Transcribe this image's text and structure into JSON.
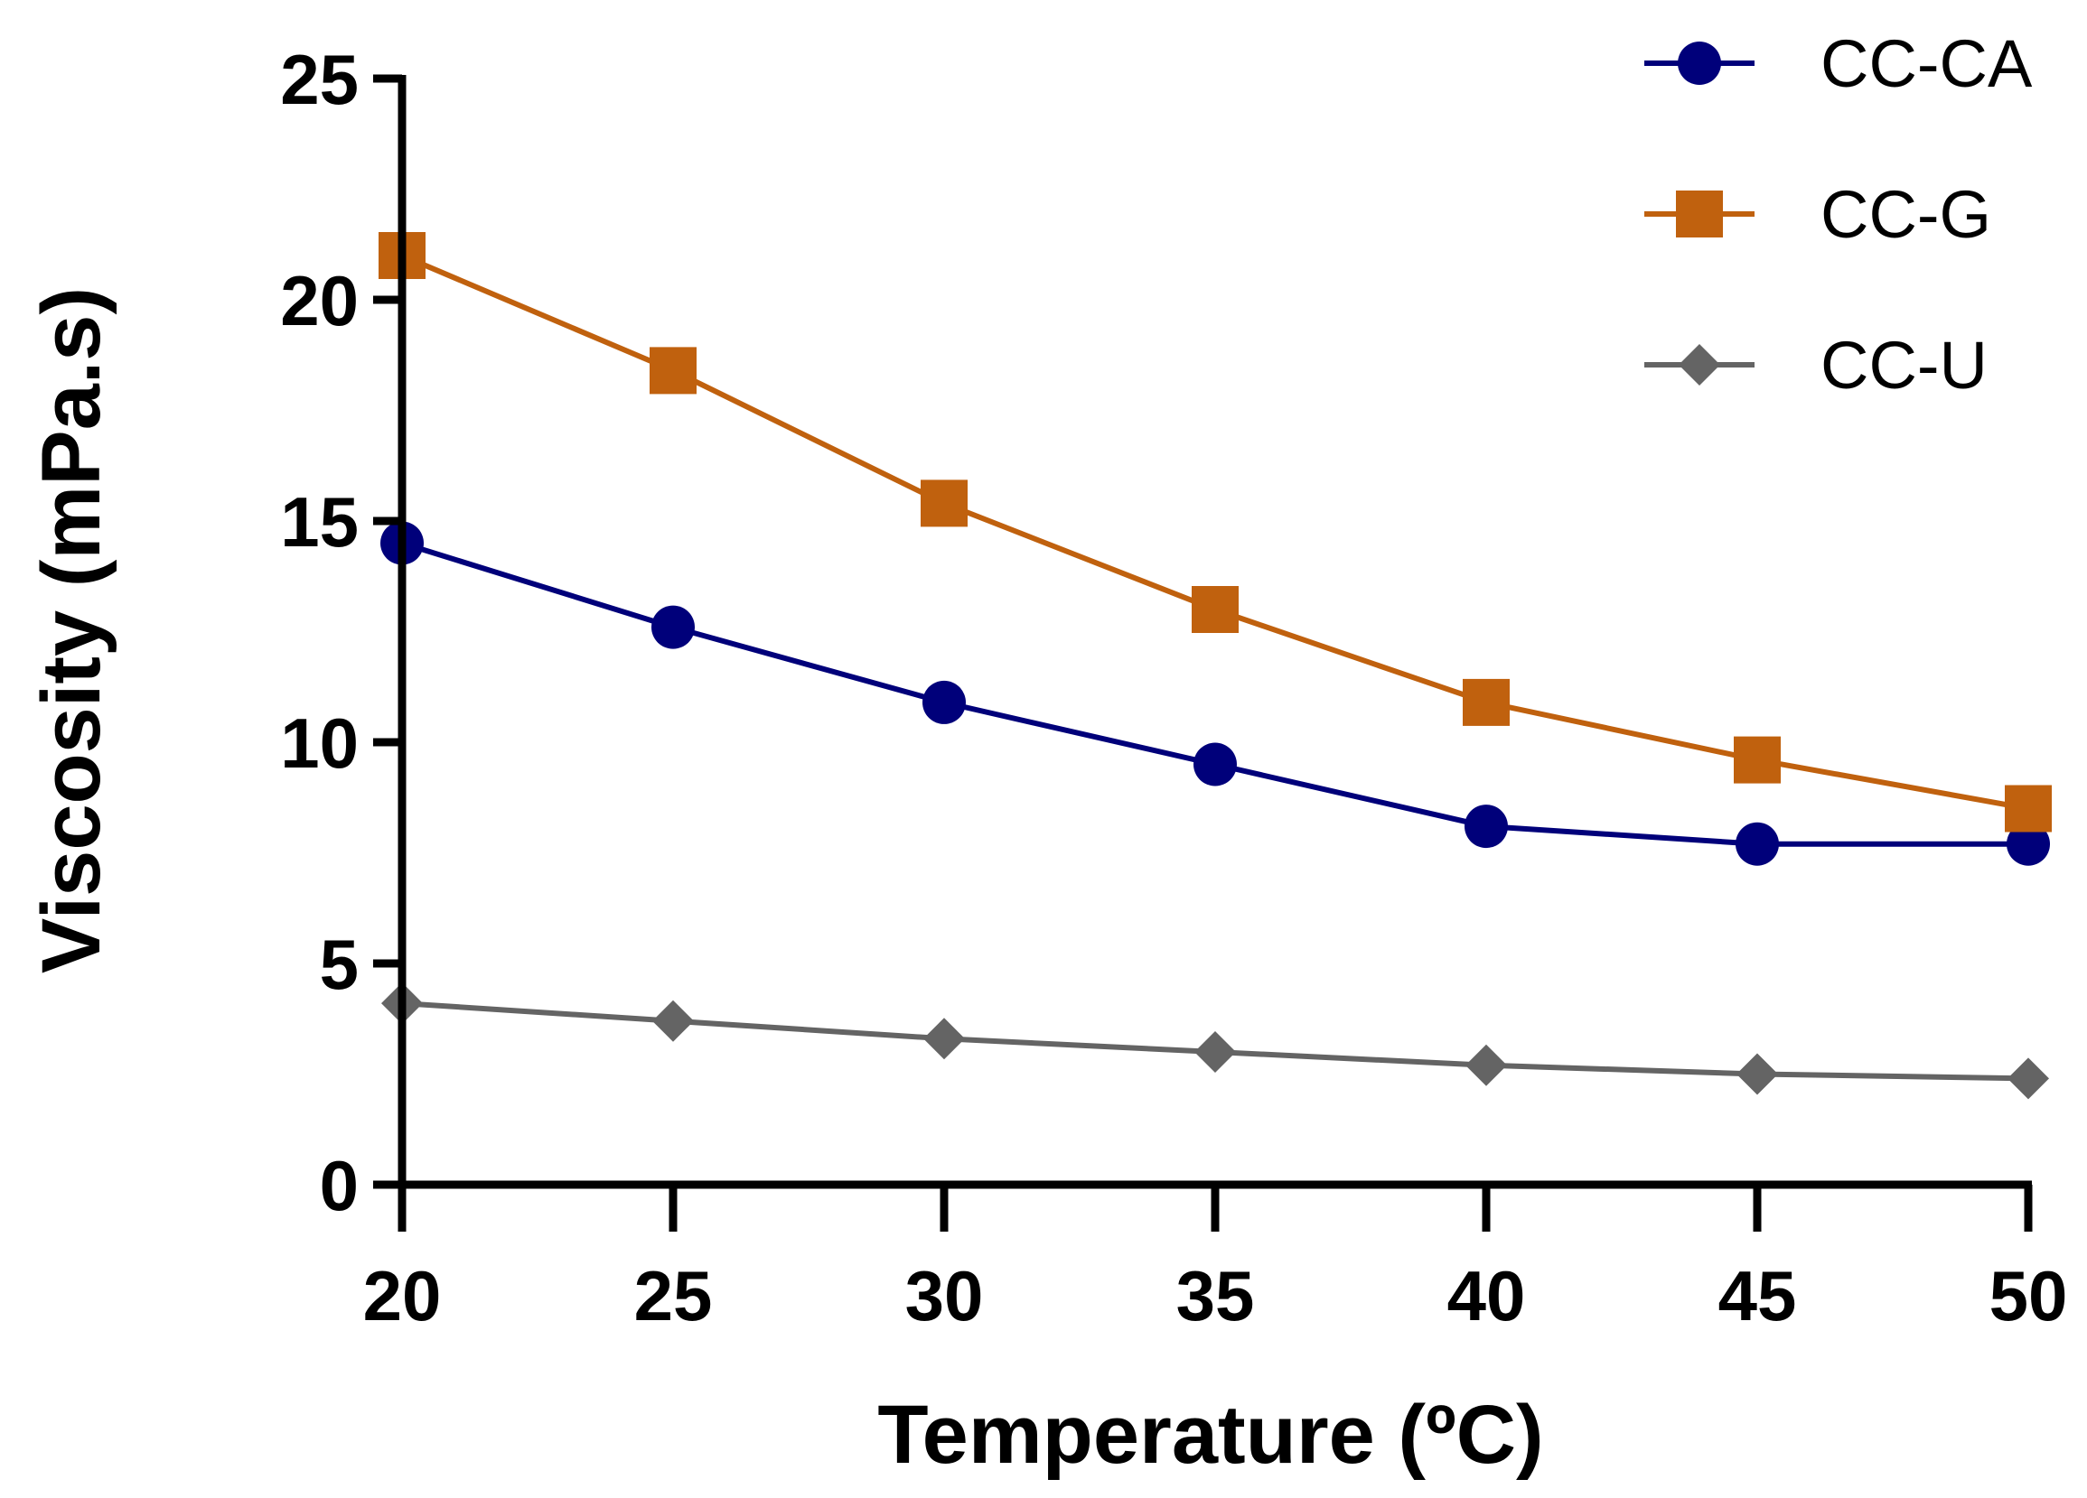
{
  "chart_data": {
    "type": "line",
    "title": "",
    "xlabel": "Temperature (ºC)",
    "ylabel": "Viscosity (mPa.s)",
    "x": [
      20,
      25,
      30,
      35,
      40,
      45,
      50
    ],
    "xlim": [
      20,
      50
    ],
    "ylim": [
      0,
      25
    ],
    "xticks": [
      20,
      25,
      30,
      35,
      40,
      45,
      50
    ],
    "yticks": [
      0,
      5,
      10,
      15,
      20,
      25
    ],
    "grid": false,
    "legend_position": "top-right",
    "series": [
      {
        "name": "CC-CA",
        "marker": "circle",
        "color": "#00007a",
        "values": [
          14.5,
          12.6,
          10.9,
          9.5,
          8.1,
          7.7,
          7.7
        ]
      },
      {
        "name": "CC-G",
        "marker": "square",
        "color": "#c0610e",
        "values": [
          21.0,
          18.4,
          15.4,
          13.0,
          10.9,
          9.6,
          8.5
        ]
      },
      {
        "name": "CC-U",
        "marker": "diamond",
        "color": "#646464",
        "values": [
          4.1,
          3.7,
          3.3,
          3.0,
          2.7,
          2.5,
          2.4
        ]
      }
    ]
  }
}
